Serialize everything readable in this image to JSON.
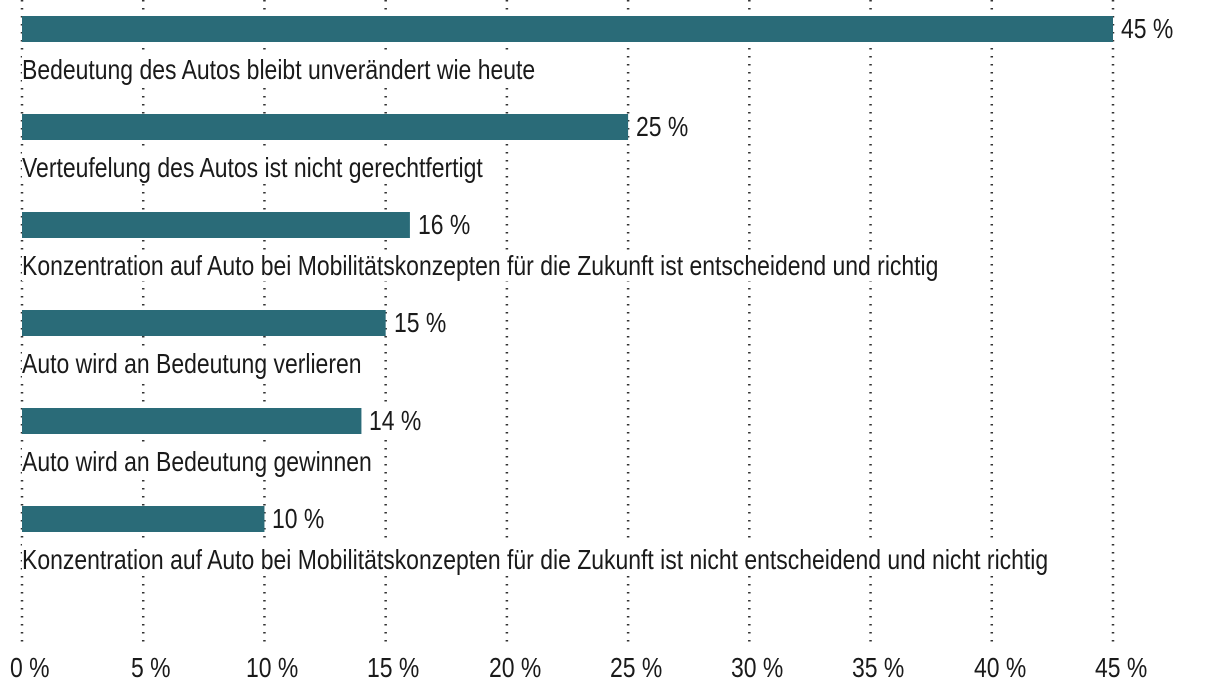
{
  "chart_data": {
    "type": "bar",
    "orientation": "horizontal",
    "categories": [
      "Bedeutung des Autos bleibt unverändert wie heute",
      "Verteufelung des Autos ist nicht gerechtfertigt",
      "Konzentration auf Auto bei Mobilitätskonzepten für die Zukunft ist entscheidend und richtig",
      "Auto wird an Bedeutung verlieren",
      "Auto wird an Bedeutung gewinnen",
      "Konzentration auf Auto bei Mobilitätskonzepten für die Zukunft ist nicht entscheidend und nicht richtig"
    ],
    "values": [
      45,
      25,
      16,
      15,
      14,
      10
    ],
    "value_labels": [
      "45 %",
      "25 %",
      "16 %",
      "15 %",
      "14 %",
      "10 %"
    ],
    "color": "#2a6b78",
    "xlim": [
      0,
      45
    ],
    "xticks": [
      {
        "value": 0,
        "label": "0 %"
      },
      {
        "value": 5,
        "label": "5 %"
      },
      {
        "value": 10,
        "label": "10 %"
      },
      {
        "value": 15,
        "label": "15 %"
      },
      {
        "value": 20,
        "label": "20 %"
      },
      {
        "value": 25,
        "label": "25 %"
      },
      {
        "value": 30,
        "label": "30 %"
      },
      {
        "value": 35,
        "label": "35 %"
      },
      {
        "value": 40,
        "label": "40 %"
      },
      {
        "value": 45,
        "label": "45 %"
      }
    ],
    "grid": true
  }
}
